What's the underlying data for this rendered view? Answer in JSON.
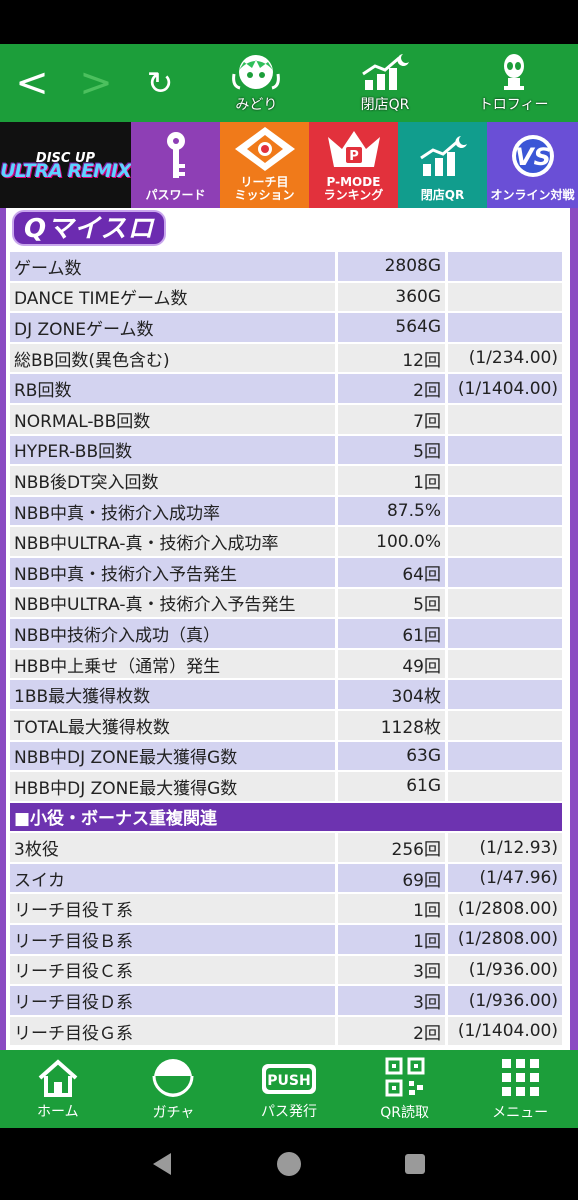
{
  "top_nav": {
    "back_glyph": "<",
    "forward_glyph": ">",
    "reload_glyph": "↻",
    "items": [
      {
        "label": "みどり",
        "icon": "character-icon"
      },
      {
        "label": "閉店QR",
        "icon": "closing-qr-icon"
      },
      {
        "label": "トロフィー",
        "icon": "trophy-alien-icon"
      }
    ]
  },
  "menu": {
    "logo_top": "DISC UP",
    "logo_main": "ULTRA REMIX",
    "tiles": [
      {
        "label": "パスワード",
        "color": "#8e3fb5",
        "icon": "key-icon"
      },
      {
        "label": "リーチ目\nミッション",
        "color": "#f07a1a",
        "icon": "mission-emblem-icon"
      },
      {
        "label": "P-MODE\nランキング",
        "color": "#e2313c",
        "icon": "crown-icon"
      },
      {
        "label": "閉店QR",
        "color": "#119d8d",
        "icon": "chart-up-icon"
      },
      {
        "label": "オンライン対戦",
        "color": "#6a4fd6",
        "icon": "vs-badge-icon"
      }
    ]
  },
  "brand": "Qマイスロ",
  "stats": [
    {
      "label": "ゲーム数",
      "value": "2808G",
      "rate": ""
    },
    {
      "label": "DANCE TIMEゲーム数",
      "value": "360G",
      "rate": ""
    },
    {
      "label": "DJ ZONEゲーム数",
      "value": "564G",
      "rate": ""
    },
    {
      "label": "総BB回数(異色含む)",
      "value": "12回",
      "rate": "(1/234.00)"
    },
    {
      "label": "RB回数",
      "value": "2回",
      "rate": "(1/1404.00)"
    },
    {
      "label": "NORMAL-BB回数",
      "value": "7回",
      "rate": ""
    },
    {
      "label": "HYPER-BB回数",
      "value": "5回",
      "rate": ""
    },
    {
      "label": "NBB後DT突入回数",
      "value": "1回",
      "rate": ""
    },
    {
      "label": "NBB中真・技術介入成功率",
      "value": "87.5%",
      "rate": ""
    },
    {
      "label": "NBB中ULTRA-真・技術介入成功率",
      "value": "100.0%",
      "rate": ""
    },
    {
      "label": "NBB中真・技術介入予告発生",
      "value": "64回",
      "rate": ""
    },
    {
      "label": "NBB中ULTRA-真・技術介入予告発生",
      "value": "5回",
      "rate": ""
    },
    {
      "label": "NBB中技術介入成功（真）",
      "value": "61回",
      "rate": ""
    },
    {
      "label": "HBB中上乗せ（通常）発生",
      "value": "49回",
      "rate": ""
    },
    {
      "label": "1BB最大獲得枚数",
      "value": "304枚",
      "rate": ""
    },
    {
      "label": "TOTAL最大獲得枚数",
      "value": "1128枚",
      "rate": ""
    },
    {
      "label": "NBB中DJ ZONE最大獲得G数",
      "value": "63G",
      "rate": ""
    },
    {
      "label": "HBB中DJ ZONE最大獲得G数",
      "value": "61G",
      "rate": ""
    }
  ],
  "section_title": "■小役・ボーナス重複関連",
  "stats2": [
    {
      "label": "3枚役",
      "value": "256回",
      "rate": "(1/12.93)"
    },
    {
      "label": "スイカ",
      "value": "69回",
      "rate": "(1/47.96)"
    },
    {
      "label": "リーチ目役Ｔ系",
      "value": "1回",
      "rate": "(1/2808.00)"
    },
    {
      "label": "リーチ目役Ｂ系",
      "value": "1回",
      "rate": "(1/2808.00)"
    },
    {
      "label": "リーチ目役Ｃ系",
      "value": "3回",
      "rate": "(1/936.00)"
    },
    {
      "label": "リーチ目役Ｄ系",
      "value": "3回",
      "rate": "(1/936.00)"
    },
    {
      "label": "リーチ目役Ｇ系",
      "value": "2回",
      "rate": "(1/1404.00)"
    }
  ],
  "bottom_nav": [
    {
      "label": "ホーム",
      "icon": "home-icon"
    },
    {
      "label": "ガチャ",
      "icon": "gacha-icon"
    },
    {
      "label": "パス発行",
      "icon": "push-pass-icon"
    },
    {
      "label": "QR読取",
      "icon": "qr-scan-icon"
    },
    {
      "label": "メニュー",
      "icon": "menu-grid-icon"
    }
  ],
  "push_text": "PUSH",
  "colors": {
    "green": "#1c9e3a",
    "purple": "#6d33b0",
    "row_a": "#d3d3f0",
    "row_b": "#ececec"
  }
}
